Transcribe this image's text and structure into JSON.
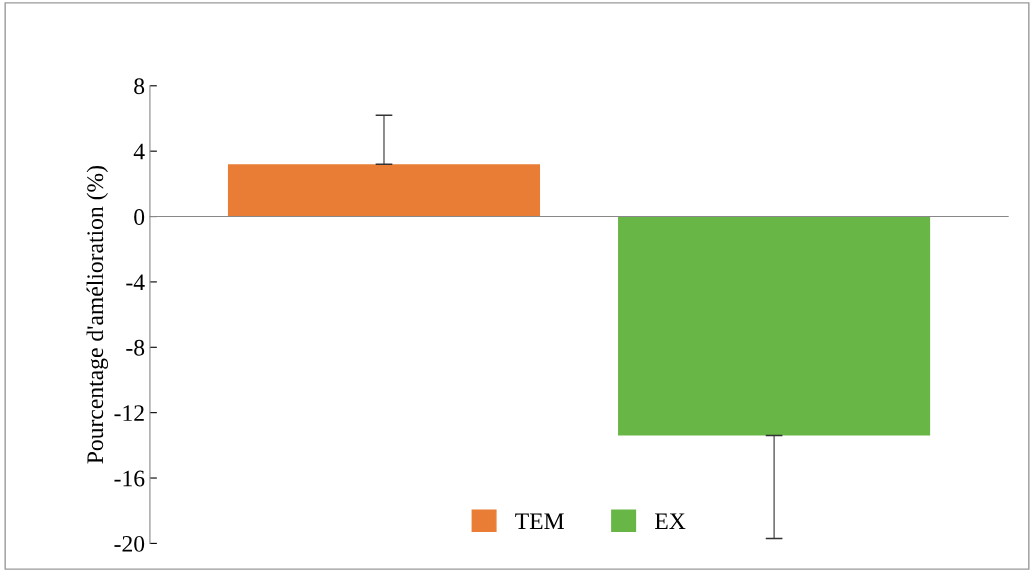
{
  "chart_data": {
    "type": "bar",
    "ylabel": "Pourcentage d'amélioration (%)",
    "categories": [
      null,
      null
    ],
    "series": [
      {
        "name": "TEM",
        "color": "#ea7d35",
        "values": [
          3.2,
          null
        ],
        "errors": [
          [
            3.2,
            6.2
          ],
          null
        ]
      },
      {
        "name": "EX",
        "color": "#67b646",
        "values": [
          null,
          -13.4
        ],
        "errors": [
          null,
          [
            -19.7,
            -13.4
          ]
        ]
      }
    ],
    "ylim": [
      -20,
      8
    ],
    "yticks": [
      -20,
      -16,
      -12,
      -8,
      -4,
      0,
      4,
      8
    ],
    "legend": "bottom"
  }
}
